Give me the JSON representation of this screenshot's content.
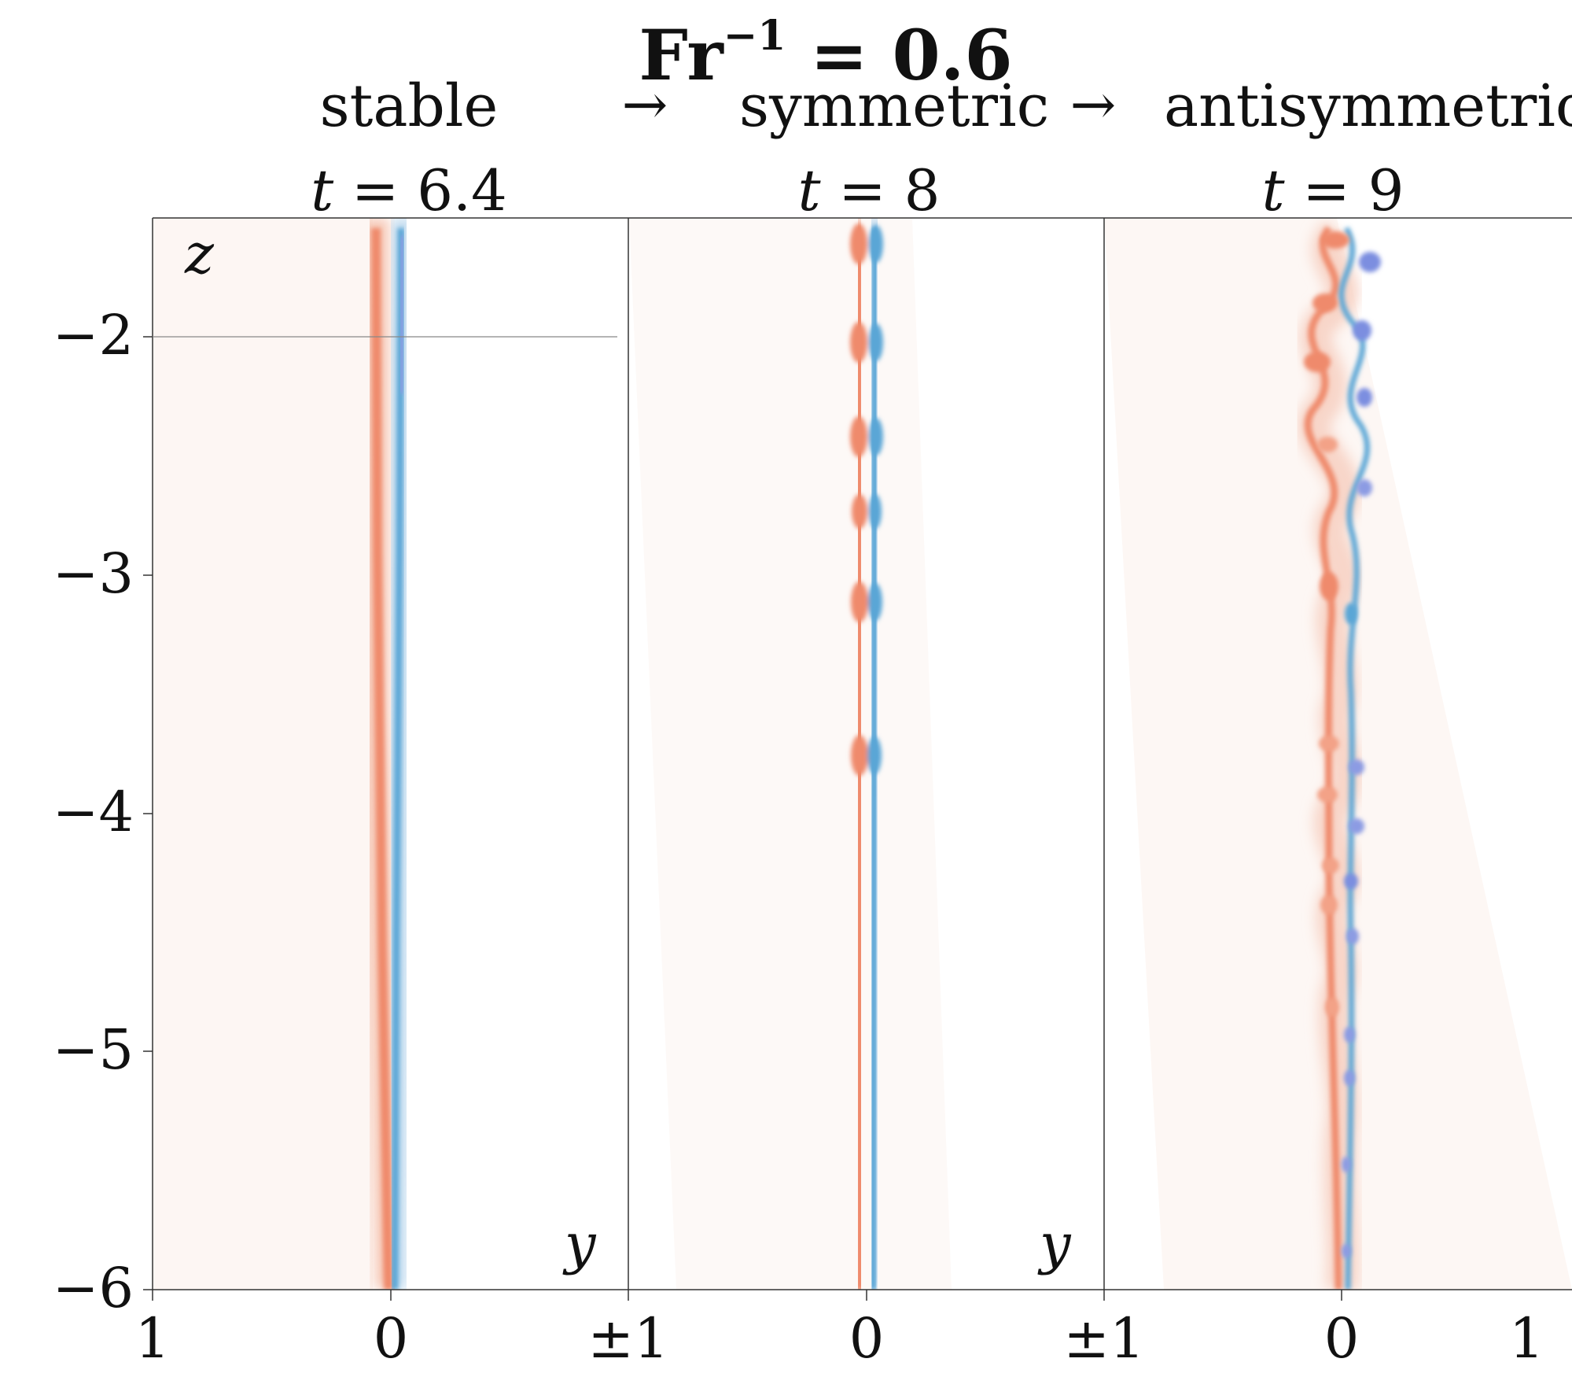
{
  "figure": {
    "title_base": "Fr",
    "title_exp": "−1",
    "title_rest": " = 0.6"
  },
  "regimes": [
    "stable",
    "symmetric",
    "antisymmetric"
  ],
  "arrow": "→",
  "panels": [
    {
      "time_var": "t",
      "time_eq": " = ",
      "time_value": "6.4"
    },
    {
      "time_var": "t",
      "time_eq": " = ",
      "time_value": "8"
    },
    {
      "time_var": "t",
      "time_eq": " = ",
      "time_value": "9"
    }
  ],
  "axes": {
    "z_label": "z",
    "y_label": "y",
    "z_ticks": [
      "−2",
      "−3",
      "−4",
      "−5",
      "−6"
    ],
    "y_ticks": [
      "1",
      "0",
      "±1",
      "0",
      "±1",
      "0",
      "1"
    ]
  },
  "colors": {
    "positive": "#ef8a6c",
    "negative": "#5aa6d6",
    "negative_core": "#7b8ee0",
    "background_tint": "#fdf6f3",
    "axis": "#333333"
  }
}
